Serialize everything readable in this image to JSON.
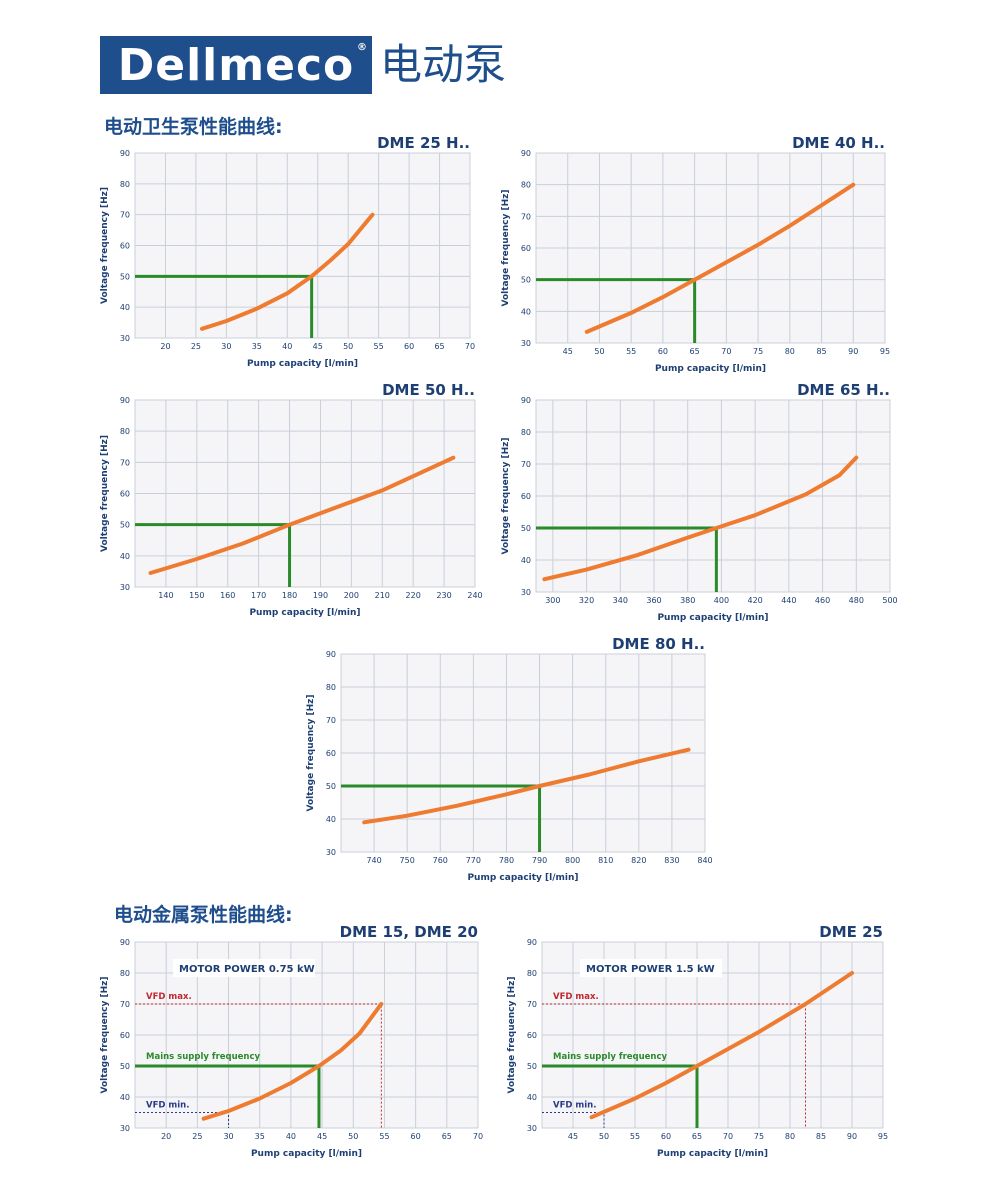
{
  "header": {
    "brand": "Dellmeco",
    "registered": "®",
    "product": "电动泵"
  },
  "sections": {
    "hygienic": "电动卫生泵性能曲线:",
    "metal": "电动金属泵性能曲线:"
  },
  "colors": {
    "curve": "#ee7b30",
    "mains": "#2a8a2a",
    "vfd_max": "#c0282e",
    "vfd_min": "#2a3a8a",
    "brand": "#1e4e8c",
    "grid": "#c9cfd9",
    "plot_bg": "#f5f5f8"
  },
  "chart_data": [
    {
      "type": "line",
      "title": "DME 25 H..",
      "xlabel": "Pump capacity [l/min]",
      "ylabel": "Voltage frequency [Hz]",
      "xlim": [
        15,
        70
      ],
      "ylim": [
        30,
        90
      ],
      "x_ticks": [
        20,
        25,
        30,
        35,
        40,
        45,
        50,
        55,
        60,
        65,
        70
      ],
      "y_ticks": [
        30,
        40,
        50,
        60,
        70,
        80,
        90
      ],
      "grid": true,
      "x": [
        26,
        30,
        35,
        40,
        44,
        47,
        50,
        54
      ],
      "y": [
        33,
        35.5,
        39.5,
        44.5,
        50,
        55,
        60.5,
        70
      ],
      "operating_point": {
        "x": 44,
        "y": 50
      }
    },
    {
      "type": "line",
      "title": "DME 40 H..",
      "xlabel": "Pump capacity [l/min]",
      "ylabel": "Voltage frequency [Hz]",
      "xlim": [
        40,
        95
      ],
      "ylim": [
        30,
        90
      ],
      "x_ticks": [
        45,
        50,
        55,
        60,
        65,
        70,
        75,
        80,
        85,
        90,
        95
      ],
      "y_ticks": [
        30,
        40,
        50,
        60,
        70,
        80,
        90
      ],
      "grid": true,
      "x": [
        48,
        55,
        60,
        65,
        70,
        75,
        80,
        85,
        90
      ],
      "y": [
        33.5,
        39.5,
        44.5,
        50,
        55.5,
        61,
        67,
        73.5,
        80
      ],
      "operating_point": {
        "x": 65,
        "y": 50
      }
    },
    {
      "type": "line",
      "title": "DME 50 H..",
      "xlabel": "Pump capacity [l/min]",
      "ylabel": "Voltage frequency [Hz]",
      "xlim": [
        130,
        240
      ],
      "ylim": [
        30,
        90
      ],
      "x_ticks": [
        140,
        150,
        160,
        170,
        180,
        190,
        200,
        210,
        220,
        230,
        240
      ],
      "y_ticks": [
        30,
        40,
        50,
        60,
        70,
        80,
        90
      ],
      "grid": true,
      "x": [
        135,
        150,
        165,
        180,
        195,
        210,
        233
      ],
      "y": [
        34.5,
        39,
        44,
        50,
        55.5,
        61,
        71.5
      ],
      "operating_point": {
        "x": 180,
        "y": 50
      }
    },
    {
      "type": "line",
      "title": "DME 65 H..",
      "xlabel": "Pump capacity [l/min]",
      "ylabel": "Voltage frequency [Hz]",
      "xlim": [
        290,
        500
      ],
      "ylim": [
        30,
        90
      ],
      "x_ticks": [
        300,
        320,
        340,
        360,
        380,
        400,
        420,
        440,
        460,
        480,
        500
      ],
      "y_ticks": [
        30,
        40,
        50,
        60,
        70,
        80,
        90
      ],
      "grid": true,
      "x": [
        295,
        320,
        350,
        380,
        397,
        420,
        450,
        470,
        480
      ],
      "y": [
        34,
        37,
        41.5,
        47,
        50,
        54,
        60.5,
        66.5,
        72
      ],
      "operating_point": {
        "x": 397,
        "y": 50
      }
    },
    {
      "type": "line",
      "title": "DME 80 H..",
      "xlabel": "Pump capacity [l/min]",
      "ylabel": "Voltage frequency [Hz]",
      "xlim": [
        730,
        840
      ],
      "ylim": [
        30,
        90
      ],
      "x_ticks": [
        740,
        750,
        760,
        770,
        780,
        790,
        800,
        810,
        820,
        830,
        840
      ],
      "y_ticks": [
        30,
        40,
        50,
        60,
        70,
        80,
        90
      ],
      "grid": true,
      "x": [
        737,
        750,
        765,
        780,
        790,
        805,
        820,
        835
      ],
      "y": [
        39,
        41,
        44,
        47.5,
        50,
        53.5,
        57.5,
        61
      ],
      "operating_point": {
        "x": 790,
        "y": 50
      }
    },
    {
      "type": "line",
      "title": "DME 15, DME 20",
      "xlabel": "Pump capacity [l/min]",
      "ylabel": "Voltage frequency [Hz]",
      "xlim": [
        15,
        70
      ],
      "ylim": [
        30,
        90
      ],
      "x_ticks": [
        20,
        25,
        30,
        35,
        40,
        45,
        50,
        55,
        60,
        65,
        70
      ],
      "y_ticks": [
        30,
        40,
        50,
        60,
        70,
        80,
        90
      ],
      "grid": true,
      "x": [
        26,
        30,
        35,
        40,
        44.5,
        48,
        51,
        54.5
      ],
      "y": [
        33,
        35.5,
        39.5,
        44.5,
        50,
        55,
        60.5,
        70
      ],
      "operating_point": {
        "x": 44.5,
        "y": 50
      },
      "motor_power": "MOTOR POWER 0.75 kW",
      "annotations": {
        "vfd_max": {
          "label": "VFD max.",
          "x": 54.5,
          "y": 70
        },
        "mains": {
          "label": "Mains supply frequency",
          "x": 44.5,
          "y": 50
        },
        "vfd_min": {
          "label": "VFD min.",
          "x": 30,
          "y": 35
        }
      }
    },
    {
      "type": "line",
      "title": "DME 25",
      "xlabel": "Pump capacity [l/min]",
      "ylabel": "Voltage frequency [Hz]",
      "xlim": [
        40,
        95
      ],
      "ylim": [
        30,
        90
      ],
      "x_ticks": [
        45,
        50,
        55,
        60,
        65,
        70,
        75,
        80,
        85,
        90,
        95
      ],
      "y_ticks": [
        30,
        40,
        50,
        60,
        70,
        80,
        90
      ],
      "grid": true,
      "x": [
        48,
        55,
        60,
        65,
        70,
        75,
        82.5,
        90
      ],
      "y": [
        33.5,
        39.5,
        44.5,
        50,
        55.5,
        61,
        70,
        80
      ],
      "operating_point": {
        "x": 65,
        "y": 50
      },
      "motor_power": "MOTOR POWER 1.5 kW",
      "annotations": {
        "vfd_max": {
          "label": "VFD max.",
          "x": 82.5,
          "y": 70
        },
        "mains": {
          "label": "Mains supply frequency",
          "x": 65,
          "y": 50
        },
        "vfd_min": {
          "label": "VFD min.",
          "x": 50,
          "y": 35
        }
      }
    }
  ]
}
